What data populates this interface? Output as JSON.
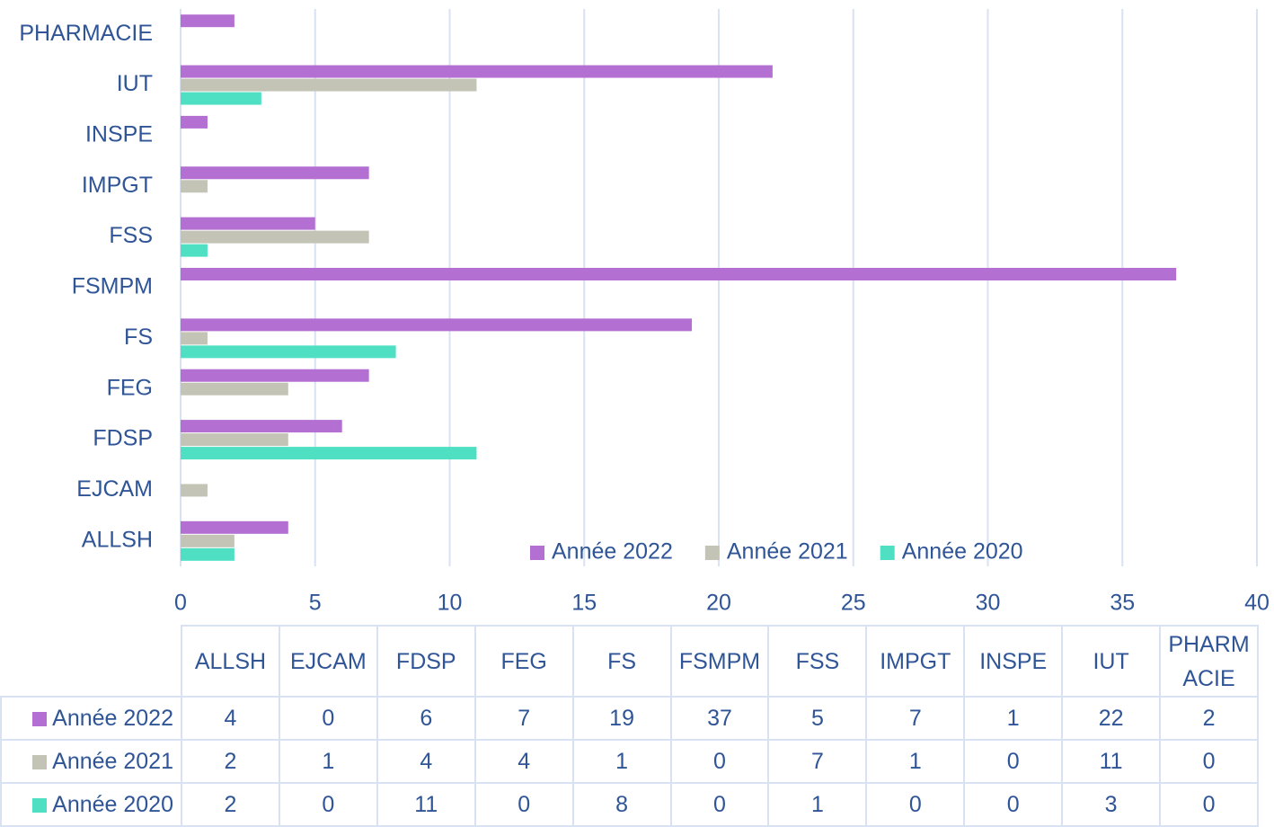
{
  "chart_data": {
    "type": "barh",
    "categories": [
      "ALLSH",
      "EJCAM",
      "FDSP",
      "FEG",
      "FS",
      "FSMPM",
      "FSS",
      "IMPGT",
      "INSPE",
      "IUT",
      "PHARMACIE"
    ],
    "series": [
      {
        "name": "Année 2022",
        "color": "#b46fd2",
        "values": [
          4,
          0,
          6,
          7,
          19,
          37,
          5,
          7,
          1,
          22,
          2
        ]
      },
      {
        "name": "Année 2021",
        "color": "#c4c4b6",
        "values": [
          2,
          1,
          4,
          4,
          1,
          0,
          7,
          1,
          0,
          11,
          0
        ]
      },
      {
        "name": "Année 2020",
        "color": "#4fe0c4",
        "values": [
          2,
          0,
          11,
          0,
          8,
          0,
          1,
          0,
          0,
          3,
          0
        ]
      }
    ],
    "xlim": [
      0,
      40
    ],
    "xticks": [
      0,
      5,
      10,
      15,
      20,
      25,
      30,
      35,
      40
    ],
    "grid": true,
    "legend": "bottom-right",
    "data_table": true
  }
}
